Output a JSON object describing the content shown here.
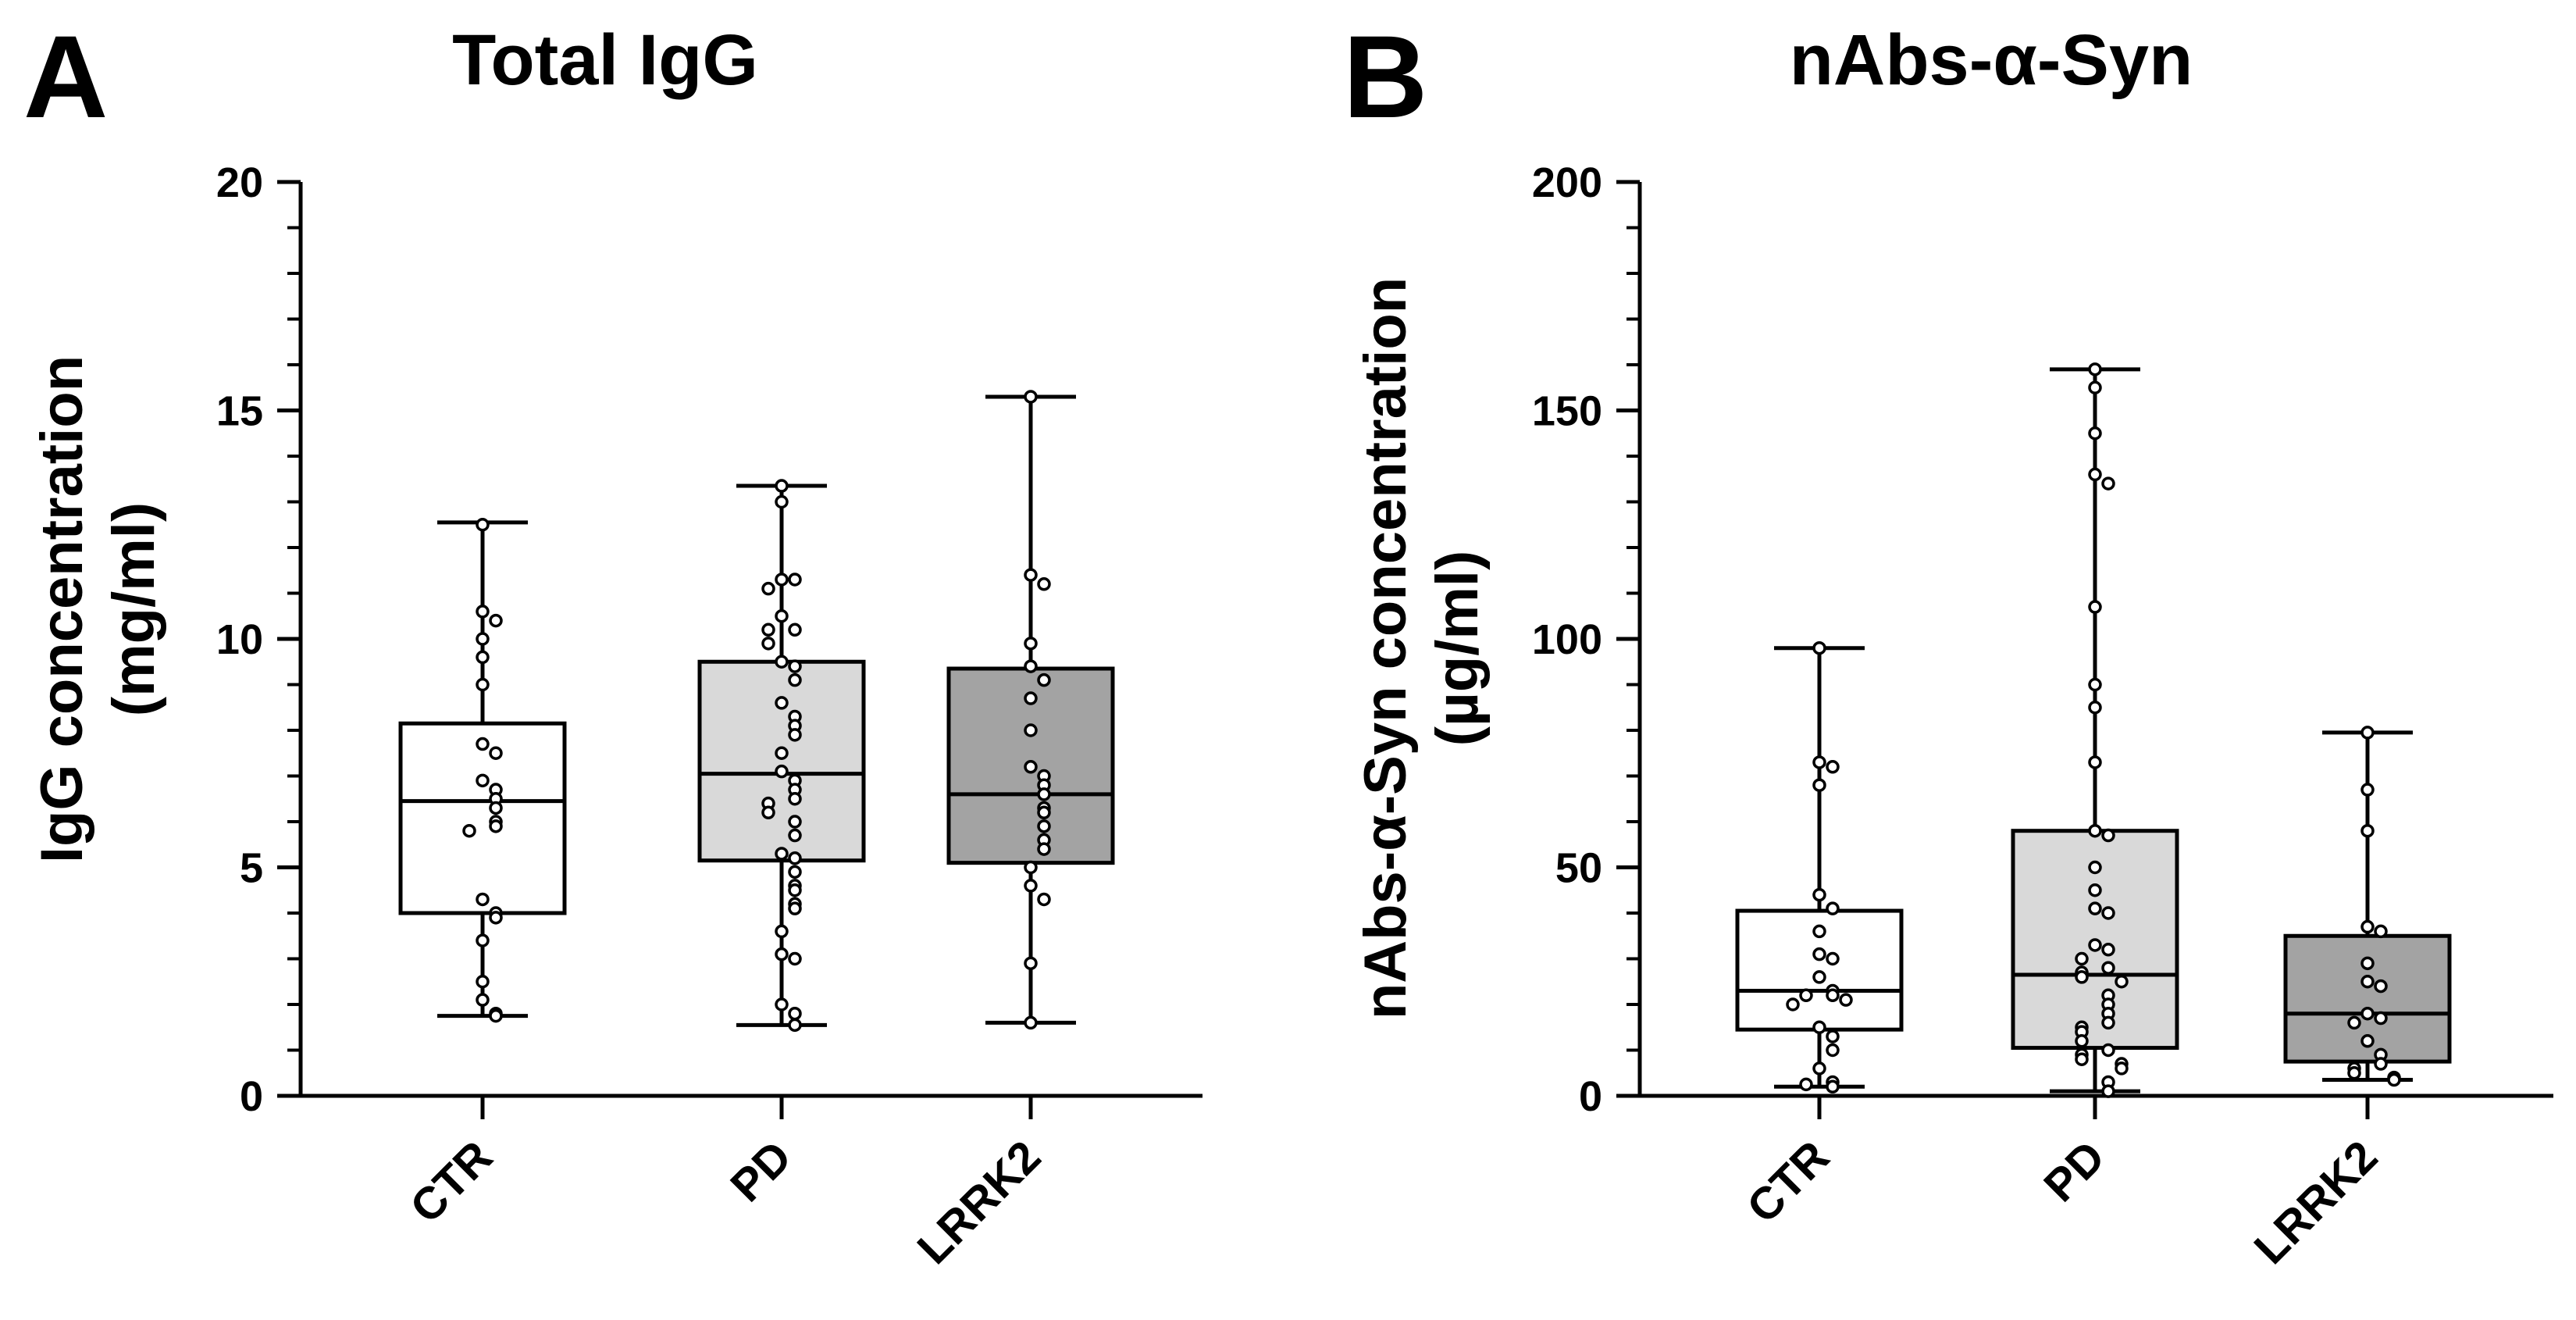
{
  "chart_data": [
    {
      "type": "box",
      "panel": "A",
      "title": "Total IgG",
      "ylabel_line1": "IgG concentration",
      "ylabel_line2": "(mg/ml)",
      "ylim": [
        0,
        20
      ],
      "yticks": [
        0,
        5,
        10,
        15,
        20
      ],
      "ytick_labels": [
        "0",
        "5",
        "10",
        "15",
        "20"
      ],
      "minor_step": 1,
      "categories": [
        "CTR",
        "PD",
        "LRRK2"
      ],
      "fill_colors": [
        "#ffffff",
        "#d9d9d9",
        "#a3a3a3"
      ],
      "series": [
        {
          "name": "CTR",
          "min": 1.75,
          "q1": 4.0,
          "median": 6.45,
          "q3": 8.15,
          "max": 12.55,
          "points": [
            12.5,
            10.6,
            10.4,
            10.0,
            9.6,
            9.0,
            7.7,
            7.5,
            6.9,
            6.7,
            6.5,
            6.3,
            6.0,
            5.9,
            5.8,
            4.3,
            4.0,
            3.9,
            3.4,
            2.5,
            2.1,
            1.8,
            1.75
          ]
        },
        {
          "name": "PD",
          "min": 1.55,
          "q1": 5.15,
          "median": 7.05,
          "q3": 9.5,
          "max": 13.35,
          "points": [
            13.35,
            13.0,
            11.3,
            11.3,
            11.1,
            10.5,
            10.2,
            10.2,
            9.9,
            9.5,
            9.4,
            9.1,
            8.6,
            8.3,
            8.1,
            7.9,
            7.5,
            7.1,
            6.9,
            6.7,
            6.5,
            6.4,
            6.2,
            6.0,
            5.7,
            5.3,
            5.2,
            4.9,
            4.6,
            4.5,
            4.2,
            4.1,
            3.6,
            3.1,
            3.0,
            2.0,
            1.8,
            1.55
          ]
        },
        {
          "name": "LRRK2",
          "min": 1.6,
          "q1": 5.1,
          "median": 6.6,
          "q3": 9.35,
          "max": 15.3,
          "points": [
            15.3,
            11.4,
            11.2,
            9.9,
            9.4,
            9.1,
            8.7,
            8.0,
            7.2,
            7.0,
            6.8,
            6.6,
            6.3,
            6.2,
            5.9,
            5.6,
            5.4,
            5.0,
            4.6,
            4.3,
            2.9,
            1.6
          ]
        }
      ]
    },
    {
      "type": "box",
      "panel": "B",
      "title": "nAbs-α-Syn",
      "ylabel_line1": "nAbs-α-Syn concentration",
      "ylabel_line2": "(µg/ml)",
      "ylim": [
        0,
        200
      ],
      "yticks": [
        0,
        50,
        100,
        150,
        200
      ],
      "ytick_labels": [
        "0",
        "50",
        "100",
        "150",
        "200"
      ],
      "minor_step": 10,
      "categories": [
        "CTR",
        "PD",
        "LRRK2"
      ],
      "fill_colors": [
        "#ffffff",
        "#d9d9d9",
        "#a3a3a3"
      ],
      "series": [
        {
          "name": "CTR",
          "min": 2.0,
          "q1": 14.5,
          "median": 23.0,
          "q3": 40.5,
          "max": 98.0,
          "points": [
            98.0,
            73.0,
            72.0,
            68.0,
            44.0,
            41.0,
            36.0,
            31.0,
            30.0,
            26.0,
            23.0,
            22.0,
            22.0,
            21.0,
            20.0,
            15.0,
            13.0,
            10.0,
            6.0,
            3.0,
            2.0,
            2.5
          ]
        },
        {
          "name": "PD",
          "min": 1.0,
          "q1": 10.5,
          "median": 26.5,
          "q3": 58.0,
          "max": 159.0,
          "points": [
            159.0,
            155.0,
            145.0,
            136.0,
            134.0,
            107.0,
            90.0,
            85.0,
            73.0,
            58.0,
            57.0,
            50.0,
            45.0,
            41.0,
            40.0,
            33.0,
            32.0,
            30.0,
            28.0,
            27.0,
            26.0,
            25.0,
            22.0,
            20.0,
            18.0,
            16.0,
            15.0,
            14.0,
            12.0,
            10.0,
            9.0,
            8.0,
            7.0,
            6.0,
            3.0,
            1.0
          ]
        },
        {
          "name": "LRRK2",
          "min": 3.5,
          "q1": 7.5,
          "median": 18.0,
          "q3": 35.0,
          "max": 79.5,
          "points": [
            79.5,
            67.0,
            58.0,
            37.0,
            36.0,
            29.0,
            25.0,
            24.0,
            18.0,
            17.0,
            16.0,
            12.0,
            9.0,
            7.0,
            6.0,
            5.0,
            4.0,
            3.5
          ]
        }
      ]
    }
  ]
}
